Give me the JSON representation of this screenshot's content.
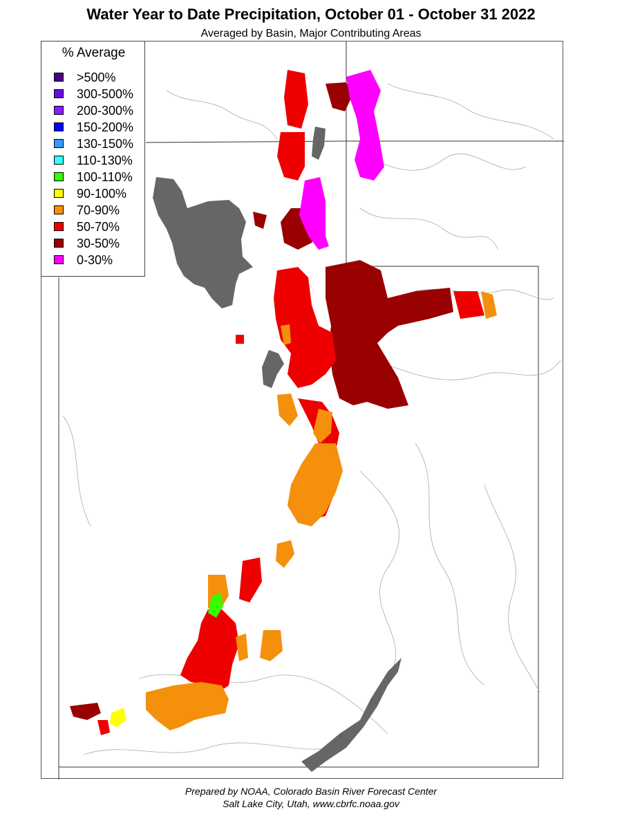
{
  "title": "Water Year to Date Precipitation, October 01  - October 31 2022",
  "subtitle": "Averaged by Basin, Major Contributing Areas",
  "legend": {
    "title": "% Average",
    "items": [
      {
        "label": ">500%",
        "color": "#4b0082"
      },
      {
        "label": "300-500%",
        "color": "#6a0dde"
      },
      {
        "label": "200-300%",
        "color": "#8b1aff"
      },
      {
        "label": "150-200%",
        "color": "#0000ff"
      },
      {
        "label": "130-150%",
        "color": "#3399ff"
      },
      {
        "label": "110-130%",
        "color": "#33ffff"
      },
      {
        "label": "100-110%",
        "color": "#33ff00"
      },
      {
        "label": "90-100%",
        "color": "#ffff00"
      },
      {
        "label": "70-90%",
        "color": "#f4900c"
      },
      {
        "label": "50-70%",
        "color": "#ee0000"
      },
      {
        "label": "30-50%",
        "color": "#990000"
      },
      {
        "label": "0-30%",
        "color": "#ff00ff"
      }
    ]
  },
  "water_color": "#666666",
  "footer": {
    "line1": "Prepared by NOAA, Colorado Basin River Forecast Center",
    "line2": "Salt Lake City, Utah, www.cbrfc.noaa.gov"
  }
}
